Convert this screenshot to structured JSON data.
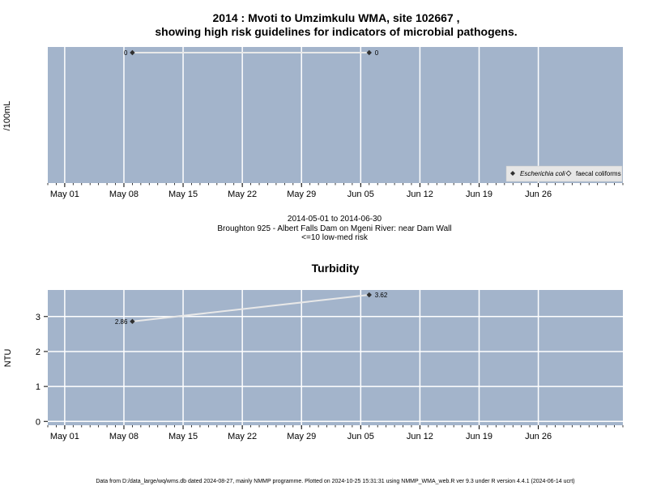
{
  "header": {
    "title_line1": "2014 : Mvoti to Umzimkulu WMA, site 102667 ,",
    "title_line2": "showing high risk guidelines for indicators of microbial pathogens."
  },
  "subtitle": {
    "line1": "2014-05-01 to 2014-06-30",
    "line2": "Broughton 925 - Albert Falls Dam on Mgeni River: near Dam Wall",
    "line3": "<=10 low-med risk"
  },
  "footer": {
    "text": "Data from D:/data_large/wq/wms.db dated 2024-08-27, mainly NMMP programme. Plotted on 2024-10-25 15:31:31 using NMMP_WMA_web.R ver 9.3 under R version 4.4.1 (2024-06-14 ucrt)"
  },
  "colors": {
    "panel_bg": "#a3b4cb",
    "grid": "#ffffff",
    "series_line": "#e8e8e8",
    "point": "#303030"
  },
  "chart_data": [
    {
      "type": "line",
      "title": "",
      "xlabel": "",
      "ylabel": "/100mL",
      "x_tick_labels": [
        "May 01",
        "May 08",
        "May 15",
        "May 22",
        "May 29",
        "Jun 05",
        "Jun 12",
        "Jun 19",
        "Jun 26"
      ],
      "x_tick_dates": [
        "2014-05-01",
        "2014-05-08",
        "2014-05-15",
        "2014-05-22",
        "2014-05-29",
        "2014-06-05",
        "2014-06-12",
        "2014-06-19",
        "2014-06-26"
      ],
      "xlim": [
        "2014-04-29",
        "2014-07-06"
      ],
      "grid": true,
      "legend_position": "bottom-right",
      "series": [
        {
          "name": "Escherichia coli",
          "marker": "filled-diamond",
          "x": [
            "2014-05-09",
            "2014-06-06"
          ],
          "y": [
            0,
            0
          ],
          "labels": [
            "0",
            "0"
          ]
        },
        {
          "name": "faecal coliforms",
          "marker": "open-diamond",
          "x": [],
          "y": [],
          "labels": []
        }
      ]
    },
    {
      "type": "line",
      "title": "Turbidity",
      "xlabel": "",
      "ylabel": "NTU",
      "x_tick_labels": [
        "May 01",
        "May 08",
        "May 15",
        "May 22",
        "May 29",
        "Jun 05",
        "Jun 12",
        "Jun 19",
        "Jun 26"
      ],
      "x_tick_dates": [
        "2014-05-01",
        "2014-05-08",
        "2014-05-15",
        "2014-05-22",
        "2014-05-29",
        "2014-06-05",
        "2014-06-12",
        "2014-06-19",
        "2014-06-26"
      ],
      "xlim": [
        "2014-04-29",
        "2014-07-06"
      ],
      "ylim": [
        -0.11,
        3.76
      ],
      "y_ticks": [
        0,
        1,
        2,
        3
      ],
      "y_tick_labels": [
        "0",
        "1",
        "2",
        "3"
      ],
      "grid": true,
      "series": [
        {
          "name": "",
          "marker": "filled-diamond",
          "x": [
            "2014-05-09",
            "2014-06-06"
          ],
          "y": [
            2.86,
            3.62
          ],
          "labels": [
            "2.86",
            "3.62"
          ]
        }
      ]
    }
  ]
}
